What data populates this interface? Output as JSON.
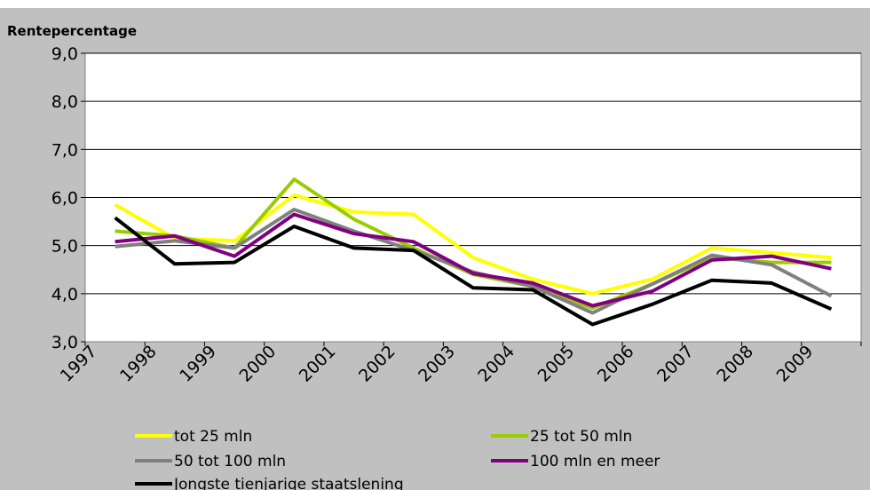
{
  "chart_data": {
    "type": "line",
    "ylabel": "Rentepercentage",
    "ylim": [
      3.0,
      9.0
    ],
    "yticks": [
      "3,0",
      "4,0",
      "5,0",
      "6,0",
      "7,0",
      "8,0",
      "9,0"
    ],
    "categories": [
      "1997",
      "1998",
      "1999",
      "2000",
      "2001",
      "2002",
      "2003",
      "2004",
      "2005",
      "2006",
      "2007",
      "2008",
      "2009"
    ],
    "grid": true,
    "legend_position": "bottom",
    "series": [
      {
        "name": "tot 25 mln",
        "color": "#ffff00",
        "values": [
          5.85,
          5.15,
          5.1,
          6.05,
          5.7,
          5.65,
          4.75,
          4.3,
          4.0,
          4.3,
          4.95,
          4.85,
          4.75
        ]
      },
      {
        "name": "25 tot 50 mln",
        "color": "#99cc00",
        "values": [
          5.3,
          5.2,
          4.95,
          6.38,
          5.55,
          4.95,
          4.4,
          4.15,
          3.7,
          4.2,
          4.75,
          4.65,
          4.65
        ]
      },
      {
        "name": "50 tot 100 mln",
        "color": "#808080",
        "values": [
          4.98,
          5.1,
          4.95,
          5.75,
          5.3,
          4.9,
          4.45,
          4.15,
          3.6,
          4.2,
          4.8,
          4.6,
          3.95
        ]
      },
      {
        "name": "100 mln en meer",
        "color": "#800080",
        "values": [
          5.08,
          5.2,
          4.78,
          5.65,
          5.25,
          5.08,
          4.42,
          4.22,
          3.75,
          4.05,
          4.7,
          4.78,
          4.52
        ]
      },
      {
        "name": "Jongste tienjarige staatslening",
        "color": "#000000",
        "values": [
          5.58,
          4.62,
          4.65,
          5.4,
          4.95,
          4.9,
          4.12,
          4.08,
          3.36,
          3.78,
          4.28,
          4.22,
          3.68
        ]
      }
    ]
  }
}
